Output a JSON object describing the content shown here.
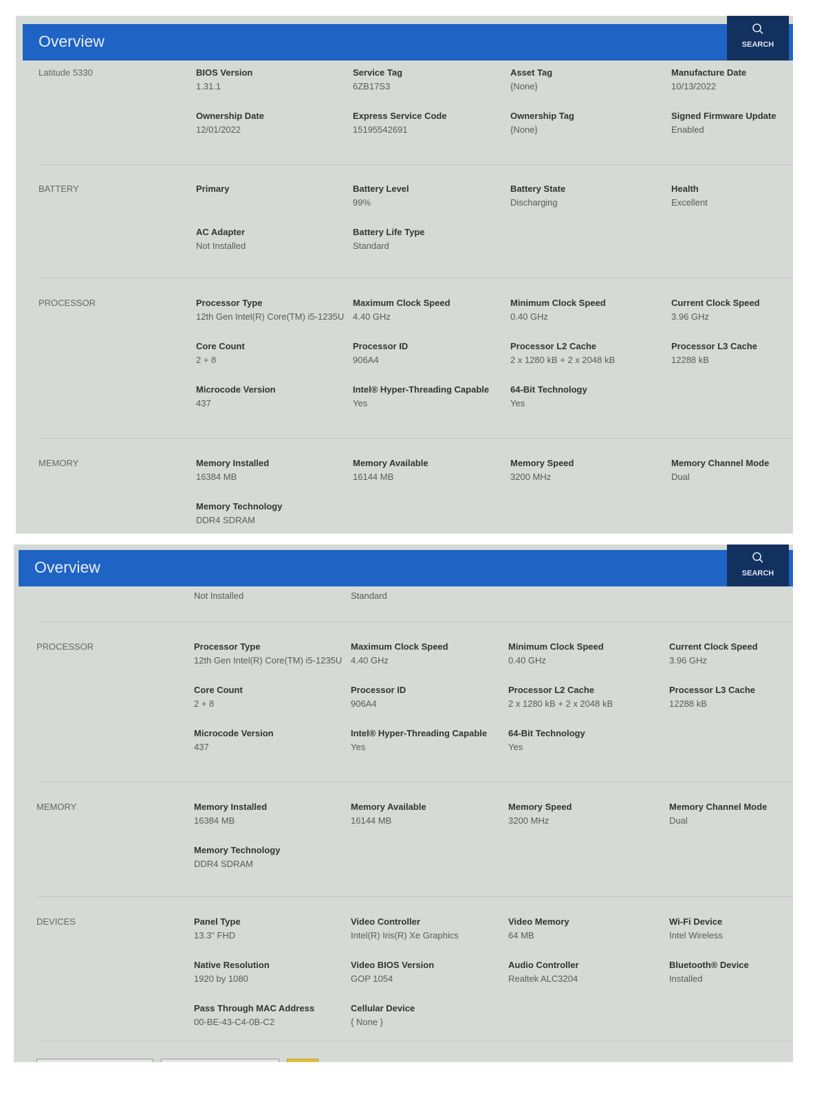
{
  "header": {
    "title": "Overview",
    "search_label": "SEARCH",
    "search_icon": "magnifier-icon"
  },
  "colors": {
    "header": "#1f63c4",
    "search_bg": "#12315e",
    "content_bg": "#d5dad5"
  },
  "top_panel": {
    "sections": [
      {
        "label": "Latitude 5330",
        "items": [
          {
            "k": "BIOS Version",
            "v": "1.31.1"
          },
          {
            "k": "Service Tag",
            "v": "6ZB17S3"
          },
          {
            "k": "Asset Tag",
            "v": "{None}"
          },
          {
            "k": "Manufacture Date",
            "v": "10/13/2022"
          },
          {
            "k": "Ownership Date",
            "v": "12/01/2022"
          },
          {
            "k": "Express Service Code",
            "v": "15195542691"
          },
          {
            "k": "Ownership Tag",
            "v": "{None}"
          },
          {
            "k": "Signed Firmware Update",
            "v": "Enabled"
          }
        ]
      },
      {
        "label": "BATTERY",
        "items": [
          {
            "k": "Primary",
            "v": ""
          },
          {
            "k": "Battery Level",
            "v": "99%"
          },
          {
            "k": "Battery State",
            "v": "Discharging"
          },
          {
            "k": "Health",
            "v": "Excellent"
          },
          {
            "k": "AC Adapter",
            "v": "Not Installed"
          },
          {
            "k": "Battery Life Type",
            "v": "Standard"
          }
        ]
      },
      {
        "label": "PROCESSOR",
        "items": [
          {
            "k": "Processor Type",
            "v": "12th Gen Intel(R) Core(TM) i5-1235U"
          },
          {
            "k": "Maximum Clock Speed",
            "v": "4.40 GHz"
          },
          {
            "k": "Minimum Clock Speed",
            "v": "0.40 GHz"
          },
          {
            "k": "Current Clock Speed",
            "v": "3.96 GHz"
          },
          {
            "k": "Core Count",
            "v": "2 + 8"
          },
          {
            "k": "Processor ID",
            "v": "906A4"
          },
          {
            "k": "Processor L2 Cache",
            "v": "2 x 1280  kB + 2 x 2048  kB"
          },
          {
            "k": "Processor L3 Cache",
            "v": "12288 kB"
          },
          {
            "k": "Microcode Version",
            "v": "437"
          },
          {
            "k": "Intel® Hyper-Threading Capable",
            "v": "Yes"
          },
          {
            "k": "64-Bit Technology",
            "v": "Yes"
          }
        ]
      },
      {
        "label": "MEMORY",
        "items": [
          {
            "k": "Memory Installed",
            "v": "16384 MB"
          },
          {
            "k": "Memory Available",
            "v": "16144 MB"
          },
          {
            "k": "Memory Speed",
            "v": "3200 MHz"
          },
          {
            "k": "Memory Channel Mode",
            "v": "Dual"
          },
          {
            "k": "Memory Technology",
            "v": "DDR4 SDRAM"
          }
        ]
      }
    ]
  },
  "bottom_panel": {
    "partial": [
      "Not Installed",
      "Standard"
    ],
    "sections": [
      {
        "label": "PROCESSOR",
        "items": [
          {
            "k": "Processor Type",
            "v": "12th Gen Intel(R) Core(TM) i5-1235U"
          },
          {
            "k": "Maximum Clock Speed",
            "v": "4.40 GHz"
          },
          {
            "k": "Minimum Clock Speed",
            "v": "0.40 GHz"
          },
          {
            "k": "Current Clock Speed",
            "v": "3.96 GHz"
          },
          {
            "k": "Core Count",
            "v": "2 + 8"
          },
          {
            "k": "Processor ID",
            "v": "906A4"
          },
          {
            "k": "Processor L2 Cache",
            "v": "2 x 1280  kB + 2 x 2048  kB"
          },
          {
            "k": "Processor L3 Cache",
            "v": "12288 kB"
          },
          {
            "k": "Microcode Version",
            "v": "437"
          },
          {
            "k": "Intel® Hyper-Threading Capable",
            "v": "Yes"
          },
          {
            "k": "64-Bit Technology",
            "v": "Yes"
          }
        ]
      },
      {
        "label": "MEMORY",
        "items": [
          {
            "k": "Memory Installed",
            "v": "16384 MB"
          },
          {
            "k": "Memory Available",
            "v": "16144 MB"
          },
          {
            "k": "Memory Speed",
            "v": "3200 MHz"
          },
          {
            "k": "Memory Channel Mode",
            "v": "Dual"
          },
          {
            "k": "Memory Technology",
            "v": "DDR4 SDRAM"
          }
        ]
      },
      {
        "label": "DEVICES",
        "items": [
          {
            "k": "Panel Type",
            "v": "13.3\" FHD"
          },
          {
            "k": "Video Controller",
            "v": "Intel(R) Iris(R) Xe Graphics"
          },
          {
            "k": "Video Memory",
            "v": "64 MB"
          },
          {
            "k": "Wi-Fi Device",
            "v": "Intel Wireless"
          },
          {
            "k": "Native Resolution",
            "v": "1920 by 1080"
          },
          {
            "k": "Video BIOS Version",
            "v": "GOP 1054"
          },
          {
            "k": "Audio Controller",
            "v": "Realtek ALC3204"
          },
          {
            "k": "Bluetooth® Device",
            "v": "Installed"
          },
          {
            "k": "Pass Through MAC Address",
            "v": "00-BE-43-C4-0B-C2"
          },
          {
            "k": "Cellular Device",
            "v": "{ None }"
          }
        ]
      }
    ]
  }
}
